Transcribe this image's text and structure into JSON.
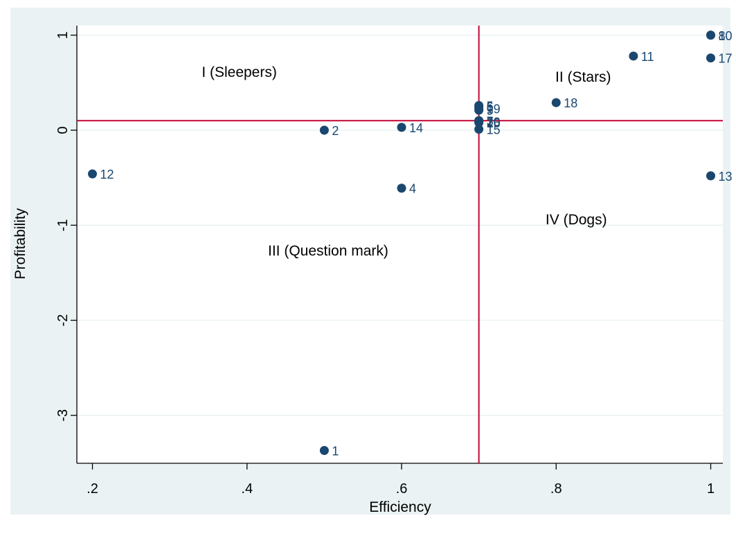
{
  "chart_data": {
    "type": "scatter",
    "title": "",
    "xlabel": "Efficiency",
    "ylabel": "Profitability",
    "xlim": [
      0.2,
      1.0
    ],
    "ylim": [
      -3.4,
      1.0
    ],
    "xticks": [
      0.2,
      0.4,
      0.6,
      0.8,
      1.0
    ],
    "xtick_labels": [
      ".2",
      ".4",
      ".6",
      ".8",
      "1"
    ],
    "yticks": [
      -3,
      -2,
      -1,
      0,
      1
    ],
    "ytick_labels": [
      "-3",
      "-2",
      "-1",
      "0",
      "1"
    ],
    "grid": "horizontal",
    "reference_lines": {
      "x": 0.7,
      "y": 0.1
    },
    "quadrant_labels": [
      {
        "label": "I (Sleepers)",
        "x": 0.39,
        "y": 0.6
      },
      {
        "label": "II (Stars)",
        "x": 0.835,
        "y": 0.55
      },
      {
        "label": "III (Question mark)",
        "x": 0.505,
        "y": -1.28
      },
      {
        "label": "IV (Dogs)",
        "x": 0.826,
        "y": -0.95
      }
    ],
    "points": [
      {
        "label": "1",
        "x": 0.5,
        "y": -3.37
      },
      {
        "label": "2",
        "x": 0.5,
        "y": 0.0
      },
      {
        "label": "3",
        "x": 0.7,
        "y": 0.1
      },
      {
        "label": "4",
        "x": 0.6,
        "y": -0.61
      },
      {
        "label": "5",
        "x": 0.7,
        "y": 0.26
      },
      {
        "label": "6",
        "x": 0.7,
        "y": 0.25
      },
      {
        "label": "7",
        "x": 0.7,
        "y": 0.1
      },
      {
        "label": "8",
        "x": 1.0,
        "y": 1.0
      },
      {
        "label": "9",
        "x": 0.7,
        "y": 0.21
      },
      {
        "label": "10",
        "x": 1.0,
        "y": 1.0
      },
      {
        "label": "11",
        "x": 0.9,
        "y": 0.78
      },
      {
        "label": "12",
        "x": 0.2,
        "y": -0.46
      },
      {
        "label": "13",
        "x": 1.0,
        "y": -0.48
      },
      {
        "label": "14",
        "x": 0.6,
        "y": 0.03
      },
      {
        "label": "15",
        "x": 0.7,
        "y": 0.01
      },
      {
        "label": "16",
        "x": 0.7,
        "y": 0.08
      },
      {
        "label": "17",
        "x": 1.0,
        "y": 0.76
      },
      {
        "label": "18",
        "x": 0.8,
        "y": 0.29
      },
      {
        "label": "19",
        "x": 0.7,
        "y": 0.23
      },
      {
        "label": "20",
        "x": 0.7,
        "y": 0.09
      }
    ],
    "colors": {
      "marker": "#1a476f",
      "reference_line": "#c10534",
      "grid": "#eaf2f3",
      "outer_background": "#eaf2f3",
      "plot_background": "#ffffff",
      "text": "#000000"
    }
  }
}
